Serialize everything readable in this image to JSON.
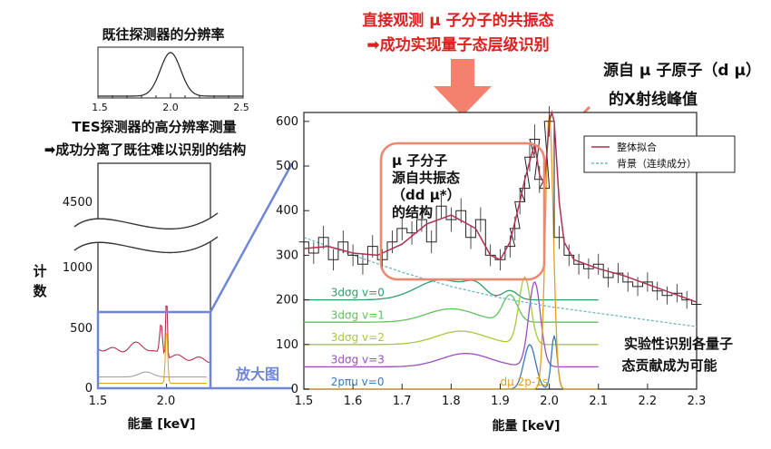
{
  "annotations": {
    "top_red_line1": "直接观测 μ 子分子的共振态",
    "top_red_line2": "➡成功实现量子态层级识别",
    "xray_line1": "源自 μ 子原子（d μ）",
    "xray_line2": "的X射线峰值",
    "resonance_l1": "μ 子分子",
    "resonance_l2": "源自共振态",
    "resonance_l3": "（dd μ*）",
    "resonance_l4": "的结构",
    "prev_res_title": "既往探测器的分辨率",
    "tes_line1": "TES探测器的高分辨率测量",
    "tes_line2": "➡成功分离了既往难以识别的结构",
    "counts_ylabel_1": "计",
    "counts_ylabel_2": "数",
    "zoom_label": "放大图",
    "energy_xlabel_left": "能量 [keV]",
    "energy_xlabel_right": "能量 [keV]",
    "quantum_l1": "实验性识别各量子",
    "quantum_l2": "态贡献成为可能"
  },
  "colors": {
    "red": "#e02020",
    "arrow": "#f4806e",
    "box": "#f0866e",
    "zoom": "#6f86d6",
    "fit": "#b03050",
    "background": "#6fb8c0",
    "data": "#222222"
  },
  "chart_data": [
    {
      "id": "main",
      "type": "line",
      "xlabel": "能量 [keV]",
      "ylabel": "",
      "xlim": [
        1.5,
        2.3
      ],
      "ylim": [
        0,
        620
      ],
      "x_ticks": [
        "1.5",
        "1.6",
        "1.7",
        "1.8",
        "1.9",
        "2.0",
        "2.1",
        "2.2",
        "2.3"
      ],
      "y_ticks": [
        "0",
        "100",
        "200",
        "300",
        "400",
        "500",
        "600"
      ],
      "legend": {
        "placement": "top-right",
        "entries": [
          "整体拟合",
          "背景（连续成分）"
        ]
      },
      "component_labels": [
        {
          "label": "3dσg v=0",
          "color": "#2e9e6b",
          "y": 200
        },
        {
          "label": "3dσg v=1",
          "color": "#62c060",
          "y": 150
        },
        {
          "label": "3dσg v=2",
          "color": "#a8c83a",
          "y": 100
        },
        {
          "label": "3dσg v=3",
          "color": "#9b4fc0",
          "y": 50
        },
        {
          "label": "2pπu v=0",
          "color": "#3a78b8",
          "y": 0
        },
        {
          "label": "dμ 2p-1s",
          "color": "#e0a020",
          "y": 0
        }
      ],
      "series": [
        {
          "name": "整体拟合",
          "color": "#b03050",
          "x": [
            1.5,
            1.55,
            1.6,
            1.65,
            1.7,
            1.75,
            1.8,
            1.85,
            1.88,
            1.9,
            1.92,
            1.94,
            1.95,
            1.96,
            1.97,
            1.98,
            1.99,
            2.0,
            2.005,
            2.01,
            2.02,
            2.03,
            2.05,
            2.1,
            2.15,
            2.2,
            2.25,
            2.3
          ],
          "y": [
            315,
            320,
            305,
            300,
            325,
            370,
            390,
            360,
            300,
            290,
            330,
            420,
            470,
            510,
            550,
            480,
            460,
            600,
            620,
            600,
            420,
            330,
            290,
            270,
            255,
            235,
            215,
            195
          ]
        },
        {
          "name": "背景（连续成分）",
          "color": "#6fb8c0",
          "x": [
            1.5,
            1.6,
            1.7,
            1.8,
            1.9,
            2.0,
            2.1,
            2.2,
            2.3
          ],
          "y": [
            340,
            300,
            262,
            230,
            205,
            185,
            170,
            155,
            140
          ]
        }
      ],
      "data_points": {
        "x": [
          1.5,
          1.52,
          1.54,
          1.56,
          1.58,
          1.6,
          1.62,
          1.64,
          1.66,
          1.68,
          1.7,
          1.72,
          1.74,
          1.76,
          1.78,
          1.8,
          1.82,
          1.84,
          1.86,
          1.88,
          1.9,
          1.92,
          1.93,
          1.94,
          1.95,
          1.96,
          1.97,
          1.98,
          1.99,
          2.0,
          2.02,
          2.04,
          2.06,
          2.08,
          2.1,
          2.12,
          2.14,
          2.16,
          2.18,
          2.2,
          2.22,
          2.24,
          2.26,
          2.28,
          2.3
        ],
        "y": [
          330,
          305,
          340,
          290,
          330,
          300,
          280,
          320,
          290,
          330,
          360,
          350,
          380,
          330,
          410,
          380,
          400,
          340,
          380,
          300,
          290,
          320,
          360,
          420,
          450,
          520,
          560,
          470,
          450,
          600,
          340,
          300,
          280,
          270,
          280,
          250,
          260,
          240,
          230,
          240,
          220,
          210,
          215,
          200,
          190
        ]
      },
      "components": [
        {
          "label": "3dσg v=0",
          "color": "#2e9e6b",
          "offset": 200,
          "peaks": [
            [
              1.78,
              45,
              0.05
            ],
            [
              1.85,
              25,
              0.02
            ],
            [
              1.92,
              20,
              0.015
            ]
          ]
        },
        {
          "label": "3dσg v=1",
          "color": "#62c060",
          "offset": 150,
          "peaks": [
            [
              1.8,
              30,
              0.05
            ],
            [
              1.92,
              60,
              0.015
            ]
          ]
        },
        {
          "label": "3dσg v=2",
          "color": "#a8c83a",
          "offset": 100,
          "peaks": [
            [
              1.82,
              30,
              0.05
            ],
            [
              1.95,
              150,
              0.012
            ]
          ]
        },
        {
          "label": "3dσg v=3",
          "color": "#9b4fc0",
          "offset": 50,
          "peaks": [
            [
              1.83,
              30,
              0.05
            ],
            [
              1.97,
              190,
              0.012
            ]
          ]
        },
        {
          "label": "2pπu v=0",
          "color": "#3a78b8",
          "offset": 0,
          "peaks": [
            [
              1.96,
              100,
              0.012
            ],
            [
              2.01,
              120,
              0.006
            ]
          ]
        },
        {
          "label": "dμ 2p-1s",
          "color": "#e0a020",
          "offset": 0,
          "peaks": [
            [
              2.0,
              620,
              0.008
            ]
          ]
        }
      ]
    },
    {
      "id": "overview",
      "type": "line",
      "xlabel": "能量 [keV]",
      "xlim": [
        1.5,
        2.3
      ],
      "ylim": [
        0,
        5000
      ],
      "x_ticks": [
        "1.5",
        "2.0"
      ],
      "y_ticks": [
        "0",
        "500",
        "1000",
        "4500"
      ]
    },
    {
      "id": "prev_resolution",
      "type": "line",
      "title": "既往探测器的分辨率",
      "xlim": [
        1.5,
        2.5
      ],
      "x_ticks": [
        "1.5",
        "2.0",
        "2.5"
      ],
      "peak_center": 2.0
    }
  ]
}
